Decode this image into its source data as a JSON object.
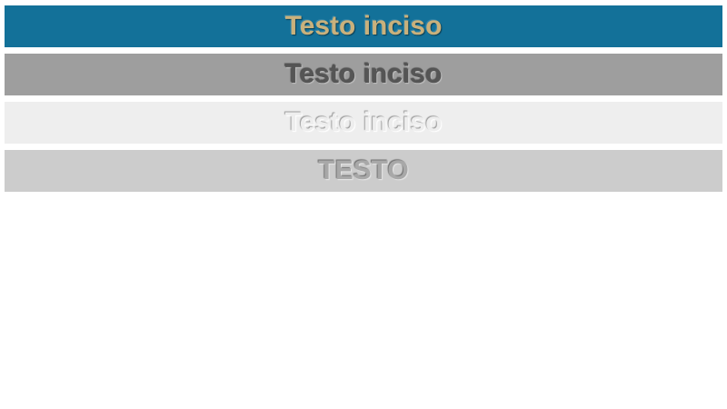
{
  "bars": [
    {
      "text": "Testo inciso",
      "background": "#137199",
      "color": "#c9b17c"
    },
    {
      "text": "Testo inciso",
      "background": "#9e9e9e",
      "color": "#555555"
    },
    {
      "text": "Testo inciso",
      "background": "#eeeeee",
      "color": "#eeeeee"
    },
    {
      "text": "TESTO",
      "background": "#cccccc",
      "color": "#a8a8a8"
    }
  ]
}
